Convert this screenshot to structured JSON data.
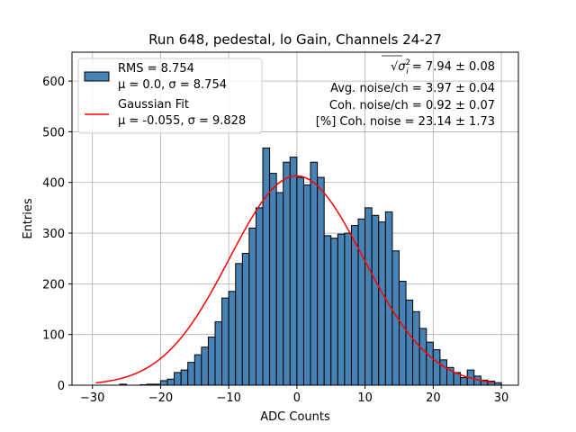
{
  "chart_data": {
    "type": "bar",
    "title": "Run 648, pedestal, lo Gain, Channels 24-27",
    "xlabel": "ADC Counts",
    "ylabel": "Entries",
    "xlim": [
      -33,
      32.5
    ],
    "ylim": [
      0,
      657
    ],
    "grid": true,
    "x_ticks": [
      -30,
      -20,
      -10,
      0,
      10,
      20,
      30
    ],
    "y_ticks": [
      0,
      100,
      200,
      300,
      400,
      500,
      600
    ],
    "x_tick_labels": [
      "−30",
      "−20",
      "−10",
      "0",
      "10",
      "20",
      "30"
    ],
    "y_tick_labels": [
      "0",
      "100",
      "200",
      "300",
      "400",
      "500",
      "600"
    ],
    "histogram": {
      "name": "RMS = 8.754",
      "name_line2": "μ = 0.0, σ = 8.754",
      "color": "#4682b4",
      "edge_color": "#000000",
      "bin_edges_start": -26,
      "bin_width": 1,
      "counts": [
        2,
        0,
        0,
        1,
        2,
        2,
        9,
        12,
        25,
        30,
        45,
        60,
        75,
        95,
        125,
        172,
        185,
        240,
        260,
        310,
        350,
        468,
        418,
        380,
        440,
        450,
        410,
        395,
        440,
        410,
        295,
        290,
        298,
        300,
        315,
        328,
        350,
        335,
        322,
        342,
        265,
        205,
        168,
        145,
        112,
        85,
        70,
        50,
        35,
        25,
        15,
        30,
        18,
        10,
        8,
        5
      ]
    },
    "fit": {
      "name": "Gaussian Fit",
      "name_line2": "μ = -0.055, σ = 9.828",
      "color": "#ff0000",
      "mu": -0.055,
      "sigma": 9.828,
      "amplitude": 413,
      "x_range": [
        -29.5,
        28.8
      ]
    },
    "annotations": [
      {
        "prefix": "",
        "math": "σ",
        "sub": "i",
        "sup": "2",
        "text": " = 7.94 ± 0.08"
      },
      {
        "text": "Avg. noise/ch = 3.97 ± 0.04"
      },
      {
        "text": "Coh. noise/ch = 0.92 ± 0.07"
      },
      {
        "text": "[%] Coh. noise = 23.14 ± 1.73"
      }
    ]
  }
}
